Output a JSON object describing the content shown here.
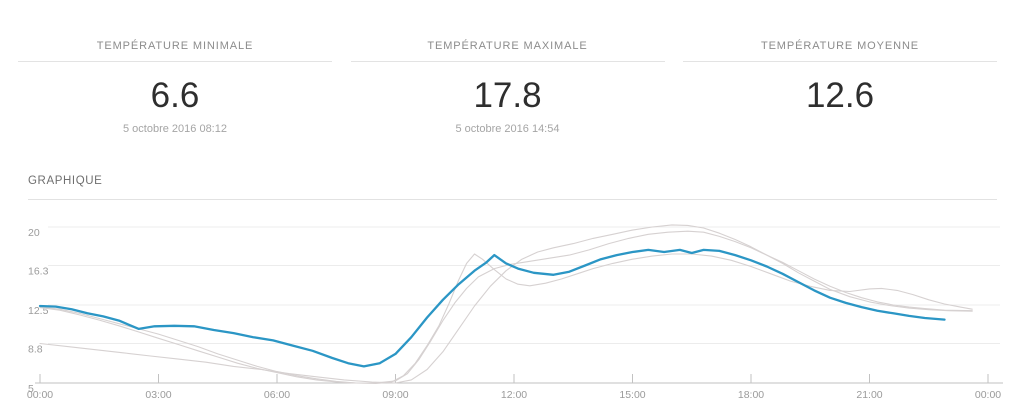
{
  "stats": [
    {
      "title": "TEMPÉRATURE MINIMALE",
      "value": "6.6",
      "date": "5 octobre 2016 08:12"
    },
    {
      "title": "TEMPÉRATURE MAXIMALE",
      "value": "17.8",
      "date": "5 octobre 2016 14:54"
    },
    {
      "title": "TEMPÉRATURE MOYENNE",
      "value": "12.6",
      "date": ""
    }
  ],
  "section": {
    "title": "GRAPHIQUE"
  },
  "colors": {
    "accent": "#2b96c5",
    "muted_line": "#d6d1d1",
    "grid": "#ececec",
    "axis": "#c2c2c2",
    "label": "#9b9b9b"
  },
  "chart_data": {
    "type": "line",
    "title": "GRAPHIQUE",
    "xlabel": "",
    "ylabel": "",
    "x_unit": "heures",
    "xlim": [
      0,
      24
    ],
    "ylim": [
      5,
      20
    ],
    "grid": true,
    "legend": false,
    "x_ticks": [
      0,
      3,
      6,
      9,
      12,
      15,
      18,
      21,
      24
    ],
    "x_tick_labels": [
      "00:00",
      "03:00",
      "06:00",
      "09:00",
      "12:00",
      "15:00",
      "18:00",
      "21:00",
      "00:00"
    ],
    "y_ticks": [
      5,
      8.8,
      12.5,
      16.3,
      20
    ],
    "y_tick_labels": [
      "5",
      "8.8",
      "12.5",
      "16.3",
      "20"
    ],
    "series": [
      {
        "name": "module-gris-1",
        "color": "#d6d1d1",
        "width": 1.1,
        "points": [
          [
            0,
            12.3
          ],
          [
            0.5,
            12.1
          ],
          [
            1,
            11.7
          ],
          [
            1.5,
            11.2
          ],
          [
            2,
            10.7
          ],
          [
            2.5,
            10.2
          ],
          [
            3,
            9.7
          ],
          [
            3.5,
            9.1
          ],
          [
            4,
            8.5
          ],
          [
            4.5,
            7.8
          ],
          [
            5,
            7.2
          ],
          [
            5.5,
            6.6
          ],
          [
            6,
            6.1
          ],
          [
            6.5,
            5.7
          ],
          [
            7,
            5.4
          ],
          [
            7.5,
            5.15
          ],
          [
            8,
            5.0
          ],
          [
            8.5,
            4.95
          ],
          [
            8.9,
            5.1
          ],
          [
            9.2,
            5.7
          ],
          [
            9.5,
            6.9
          ],
          [
            9.8,
            8.6
          ],
          [
            10.1,
            10.5
          ],
          [
            10.35,
            12.6
          ],
          [
            10.6,
            14.9
          ],
          [
            10.8,
            16.5
          ],
          [
            11,
            17.4
          ],
          [
            11.2,
            16.9
          ],
          [
            11.5,
            15.9
          ],
          [
            11.8,
            15.0
          ],
          [
            12.1,
            14.5
          ],
          [
            12.4,
            14.35
          ],
          [
            12.8,
            14.6
          ],
          [
            13.2,
            15.0
          ],
          [
            13.6,
            15.5
          ],
          [
            14,
            16.0
          ],
          [
            14.5,
            16.5
          ],
          [
            15,
            16.9
          ],
          [
            15.5,
            17.2
          ],
          [
            16,
            17.4
          ],
          [
            16.5,
            17.4
          ],
          [
            17,
            17.2
          ],
          [
            17.5,
            16.8
          ],
          [
            18,
            16.2
          ],
          [
            18.5,
            15.5
          ],
          [
            19,
            14.8
          ],
          [
            19.5,
            14.3
          ],
          [
            20,
            13.9
          ],
          [
            20.5,
            13.8
          ],
          [
            21,
            14.05
          ],
          [
            21.3,
            14.1
          ],
          [
            21.7,
            13.9
          ],
          [
            22.1,
            13.5
          ],
          [
            22.5,
            13.0
          ],
          [
            22.9,
            12.6
          ],
          [
            23.3,
            12.3
          ],
          [
            23.6,
            12.1
          ]
        ]
      },
      {
        "name": "module-gris-2",
        "color": "#d6d1d1",
        "width": 1.1,
        "points": [
          [
            0,
            8.8
          ],
          [
            0.7,
            8.5
          ],
          [
            1.4,
            8.2
          ],
          [
            2.1,
            7.9
          ],
          [
            2.8,
            7.6
          ],
          [
            3.5,
            7.3
          ],
          [
            4.2,
            7.0
          ],
          [
            4.9,
            6.6
          ],
          [
            5.6,
            6.3
          ],
          [
            6.3,
            5.9
          ],
          [
            7,
            5.6
          ],
          [
            7.7,
            5.3
          ],
          [
            8.4,
            5.1
          ],
          [
            9,
            5.0
          ],
          [
            9.4,
            5.3
          ],
          [
            9.8,
            6.3
          ],
          [
            10.2,
            8.0
          ],
          [
            10.6,
            10.2
          ],
          [
            11,
            12.4
          ],
          [
            11.4,
            14.3
          ],
          [
            11.8,
            15.8
          ],
          [
            12.2,
            16.9
          ],
          [
            12.6,
            17.6
          ],
          [
            13,
            18.0
          ],
          [
            13.5,
            18.4
          ],
          [
            14,
            18.9
          ],
          [
            14.5,
            19.3
          ],
          [
            15,
            19.7
          ],
          [
            15.5,
            20.0
          ],
          [
            16,
            20.2
          ],
          [
            16.4,
            20.15
          ],
          [
            16.8,
            19.9
          ],
          [
            17.2,
            19.4
          ],
          [
            17.6,
            18.8
          ],
          [
            18,
            18.1
          ],
          [
            18.4,
            17.3
          ],
          [
            18.8,
            16.5
          ],
          [
            19.2,
            15.6
          ],
          [
            19.6,
            14.8
          ],
          [
            20,
            14.0
          ],
          [
            20.5,
            13.3
          ],
          [
            21,
            12.8
          ],
          [
            21.5,
            12.45
          ],
          [
            22,
            12.2
          ],
          [
            22.5,
            12.05
          ],
          [
            23,
            11.95
          ],
          [
            23.6,
            11.9
          ]
        ]
      },
      {
        "name": "module-gris-3",
        "color": "#d6d1d1",
        "width": 1.1,
        "points": [
          [
            0,
            12.25
          ],
          [
            0.5,
            12.0
          ],
          [
            1,
            11.55
          ],
          [
            1.5,
            11.05
          ],
          [
            2,
            10.5
          ],
          [
            2.5,
            9.9
          ],
          [
            3,
            9.3
          ],
          [
            3.5,
            8.7
          ],
          [
            4,
            8.1
          ],
          [
            4.5,
            7.5
          ],
          [
            5,
            6.9
          ],
          [
            5.5,
            6.4
          ],
          [
            6,
            6.0
          ],
          [
            6.5,
            5.6
          ],
          [
            7,
            5.3
          ],
          [
            7.5,
            5.1
          ],
          [
            8,
            5.0
          ],
          [
            8.5,
            5.0
          ],
          [
            9,
            5.2
          ],
          [
            9.3,
            5.9
          ],
          [
            9.6,
            7.3
          ],
          [
            9.9,
            9.1
          ],
          [
            10.2,
            11.0
          ],
          [
            10.5,
            12.7
          ],
          [
            10.8,
            14.1
          ],
          [
            11.1,
            15.2
          ],
          [
            11.5,
            16.0
          ],
          [
            11.9,
            16.4
          ],
          [
            12.4,
            16.7
          ],
          [
            12.9,
            17.0
          ],
          [
            13.4,
            17.3
          ],
          [
            13.9,
            17.8
          ],
          [
            14.4,
            18.4
          ],
          [
            14.9,
            18.9
          ],
          [
            15.4,
            19.3
          ],
          [
            15.9,
            19.5
          ],
          [
            16.4,
            19.6
          ],
          [
            16.8,
            19.5
          ],
          [
            17.2,
            19.1
          ],
          [
            17.6,
            18.6
          ],
          [
            18,
            18.0
          ],
          [
            18.4,
            17.3
          ],
          [
            18.8,
            16.6
          ],
          [
            19.2,
            15.8
          ],
          [
            19.6,
            15.0
          ],
          [
            20,
            14.3
          ],
          [
            20.4,
            13.7
          ],
          [
            20.8,
            13.2
          ],
          [
            21.2,
            12.8
          ],
          [
            21.6,
            12.5
          ],
          [
            22,
            12.3
          ],
          [
            22.4,
            12.15
          ],
          [
            22.9,
            12.0
          ],
          [
            23.6,
            11.95
          ]
        ]
      },
      {
        "name": "temperature-principale",
        "main": true,
        "color": "#2b96c5",
        "width": 2.3,
        "points": [
          [
            0,
            12.4
          ],
          [
            0.4,
            12.35
          ],
          [
            0.8,
            12.1
          ],
          [
            1.2,
            11.7
          ],
          [
            1.6,
            11.4
          ],
          [
            2,
            11.0
          ],
          [
            2.5,
            10.2
          ],
          [
            2.9,
            10.45
          ],
          [
            3.4,
            10.5
          ],
          [
            3.9,
            10.45
          ],
          [
            4.4,
            10.1
          ],
          [
            4.9,
            9.8
          ],
          [
            5.4,
            9.4
          ],
          [
            5.9,
            9.1
          ],
          [
            6.4,
            8.6
          ],
          [
            6.9,
            8.1
          ],
          [
            7.4,
            7.4
          ],
          [
            7.8,
            6.9
          ],
          [
            8.2,
            6.6
          ],
          [
            8.6,
            6.9
          ],
          [
            9,
            7.8
          ],
          [
            9.4,
            9.4
          ],
          [
            9.8,
            11.3
          ],
          [
            10.2,
            13.0
          ],
          [
            10.6,
            14.5
          ],
          [
            11,
            15.8
          ],
          [
            11.3,
            16.6
          ],
          [
            11.5,
            17.3
          ],
          [
            11.8,
            16.5
          ],
          [
            12.1,
            16.0
          ],
          [
            12.5,
            15.6
          ],
          [
            13,
            15.4
          ],
          [
            13.4,
            15.7
          ],
          [
            13.8,
            16.3
          ],
          [
            14.2,
            16.9
          ],
          [
            14.6,
            17.3
          ],
          [
            15,
            17.6
          ],
          [
            15.4,
            17.8
          ],
          [
            15.8,
            17.6
          ],
          [
            16.2,
            17.8
          ],
          [
            16.5,
            17.5
          ],
          [
            16.8,
            17.8
          ],
          [
            17.2,
            17.7
          ],
          [
            17.6,
            17.3
          ],
          [
            18,
            16.8
          ],
          [
            18.4,
            16.2
          ],
          [
            18.8,
            15.5
          ],
          [
            19.2,
            14.7
          ],
          [
            19.6,
            13.9
          ],
          [
            20,
            13.2
          ],
          [
            20.4,
            12.7
          ],
          [
            20.8,
            12.3
          ],
          [
            21.2,
            11.95
          ],
          [
            21.6,
            11.7
          ],
          [
            22,
            11.45
          ],
          [
            22.4,
            11.25
          ],
          [
            22.9,
            11.1
          ]
        ]
      }
    ]
  }
}
